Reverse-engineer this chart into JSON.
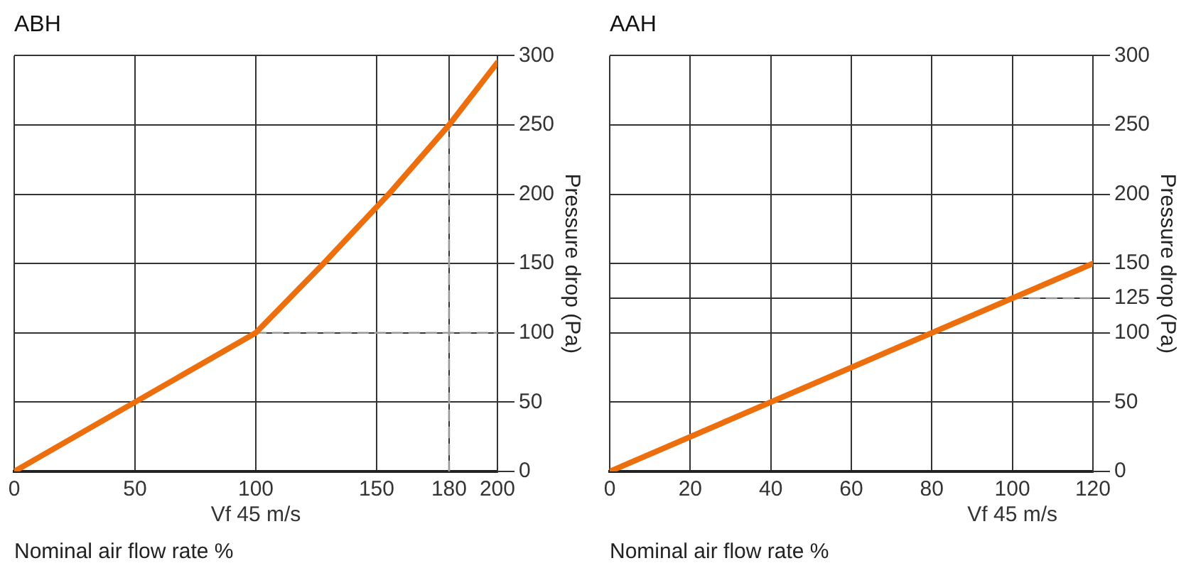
{
  "chart_data": [
    {
      "type": "line",
      "title": "ABH",
      "xlabel": "Nominal air flow rate %",
      "ylabel": "Pressure drop (Pa)",
      "xlim": [
        0,
        200
      ],
      "xticks": [
        0,
        50,
        {
          "value": 100,
          "label": "100\nVf 45 m/s"
        },
        150,
        180,
        200
      ],
      "ylim": [
        0,
        300
      ],
      "yticks": [
        0,
        50,
        100,
        150,
        200,
        250,
        300
      ],
      "grid": true,
      "legend": false,
      "marker": "none",
      "series": [
        {
          "color": "#ec6e0c",
          "x": [
            0,
            50,
            100,
            128,
            155,
            180,
            200
          ],
          "values": [
            0,
            50,
            100,
            150,
            200,
            250,
            295
          ],
          "line_style": "solid"
        },
        {
          "color": "#999999",
          "x": [
            100,
            200
          ],
          "values": [
            100,
            100
          ],
          "line_style": "dashed"
        },
        {
          "color": "#999999",
          "x": [
            180,
            180
          ],
          "values": [
            0,
            250
          ],
          "line_style": "dashed"
        }
      ]
    },
    {
      "type": "line",
      "title": "AAH",
      "xlabel": "Nominal air flow rate %",
      "ylabel": "Pressure drop (Pa)",
      "xlim": [
        0,
        120
      ],
      "xticks": [
        0,
        20,
        40,
        60,
        80,
        {
          "value": 100,
          "label": "100\nVf 45 m/s"
        },
        120
      ],
      "ylim": [
        0,
        300
      ],
      "yticks": [
        0,
        50,
        100,
        125,
        150,
        200,
        250,
        300
      ],
      "grid": true,
      "legend": false,
      "marker": "none",
      "series": [
        {
          "color": "#ec6e0c",
          "x": [
            0,
            120
          ],
          "values": [
            0,
            150
          ],
          "line_style": "solid"
        },
        {
          "color": "#999999",
          "x": [
            100,
            120
          ],
          "values": [
            125,
            125
          ],
          "line_style": "dashed"
        }
      ]
    }
  ]
}
